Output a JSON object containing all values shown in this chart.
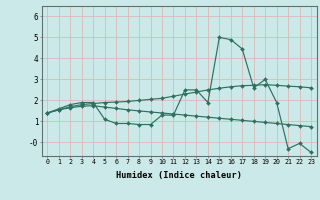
{
  "xlabel": "Humidex (Indice chaleur)",
  "background_color": "#cce9e9",
  "grid_color": "#b8d8d8",
  "line_color": "#2e7060",
  "xlim": [
    -0.5,
    23.5
  ],
  "ylim": [
    -0.65,
    6.5
  ],
  "yticks": [
    0,
    1,
    2,
    3,
    4,
    5,
    6
  ],
  "ytick_labels": [
    "-0",
    "1",
    "2",
    "3",
    "4",
    "5",
    "6"
  ],
  "xticks": [
    0,
    1,
    2,
    3,
    4,
    5,
    6,
    7,
    8,
    9,
    10,
    11,
    12,
    13,
    14,
    15,
    16,
    17,
    18,
    19,
    20,
    21,
    22,
    23
  ],
  "line1_x": [
    0,
    1,
    2,
    3,
    4,
    5,
    6,
    7,
    8,
    9,
    10,
    11,
    12,
    13,
    14,
    15,
    16,
    17,
    18,
    19,
    20,
    21,
    22,
    23
  ],
  "line1_y": [
    1.4,
    1.6,
    1.8,
    1.9,
    1.9,
    1.1,
    0.9,
    0.9,
    0.85,
    0.85,
    1.3,
    1.3,
    2.5,
    2.5,
    1.9,
    5.0,
    4.9,
    4.45,
    2.6,
    3.0,
    1.9,
    -0.3,
    -0.05,
    -0.48
  ],
  "line2_x": [
    0,
    1,
    2,
    3,
    4,
    5,
    6,
    7,
    8,
    9,
    10,
    11,
    12,
    13,
    14,
    15,
    16,
    17,
    18,
    19,
    20,
    21,
    22,
    23
  ],
  "line2_y": [
    1.4,
    1.55,
    1.7,
    1.8,
    1.85,
    1.9,
    1.92,
    1.95,
    2.0,
    2.05,
    2.1,
    2.2,
    2.3,
    2.4,
    2.5,
    2.58,
    2.65,
    2.7,
    2.72,
    2.75,
    2.72,
    2.68,
    2.65,
    2.6
  ],
  "line3_x": [
    0,
    1,
    2,
    3,
    4,
    5,
    6,
    7,
    8,
    9,
    10,
    11,
    12,
    13,
    14,
    15,
    16,
    17,
    18,
    19,
    20,
    21,
    22,
    23
  ],
  "line3_y": [
    1.4,
    1.55,
    1.65,
    1.72,
    1.75,
    1.68,
    1.62,
    1.55,
    1.5,
    1.45,
    1.4,
    1.35,
    1.3,
    1.25,
    1.2,
    1.15,
    1.1,
    1.05,
    1.0,
    0.95,
    0.9,
    0.85,
    0.8,
    0.75
  ]
}
